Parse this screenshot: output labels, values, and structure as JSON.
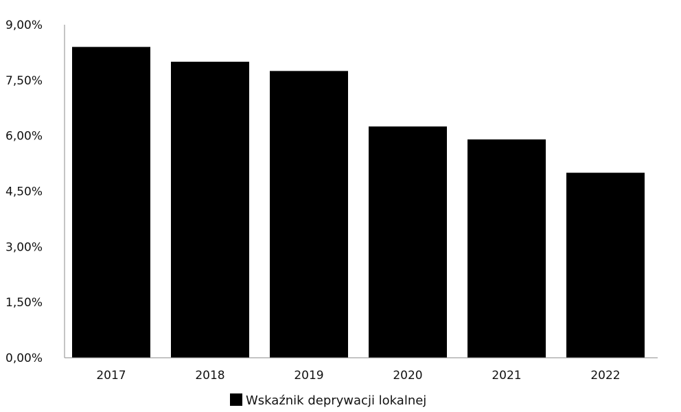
{
  "chart_data": {
    "type": "bar",
    "categories": [
      "2017",
      "2018",
      "2019",
      "2020",
      "2021",
      "2022"
    ],
    "series": [
      {
        "name": "Wskaźnik deprywacji lokalnej",
        "values": [
          8.4,
          8.0,
          7.75,
          6.25,
          5.9,
          5.0
        ],
        "color": "#000000"
      }
    ],
    "yticks": [
      "0,00%",
      "1,50%",
      "3,00%",
      "4,50%",
      "6,00%",
      "7,50%",
      "9,00%"
    ],
    "ylim": [
      0,
      9
    ],
    "ytick_step": 1.5,
    "grid": false,
    "legend_position": "bottom-center"
  }
}
